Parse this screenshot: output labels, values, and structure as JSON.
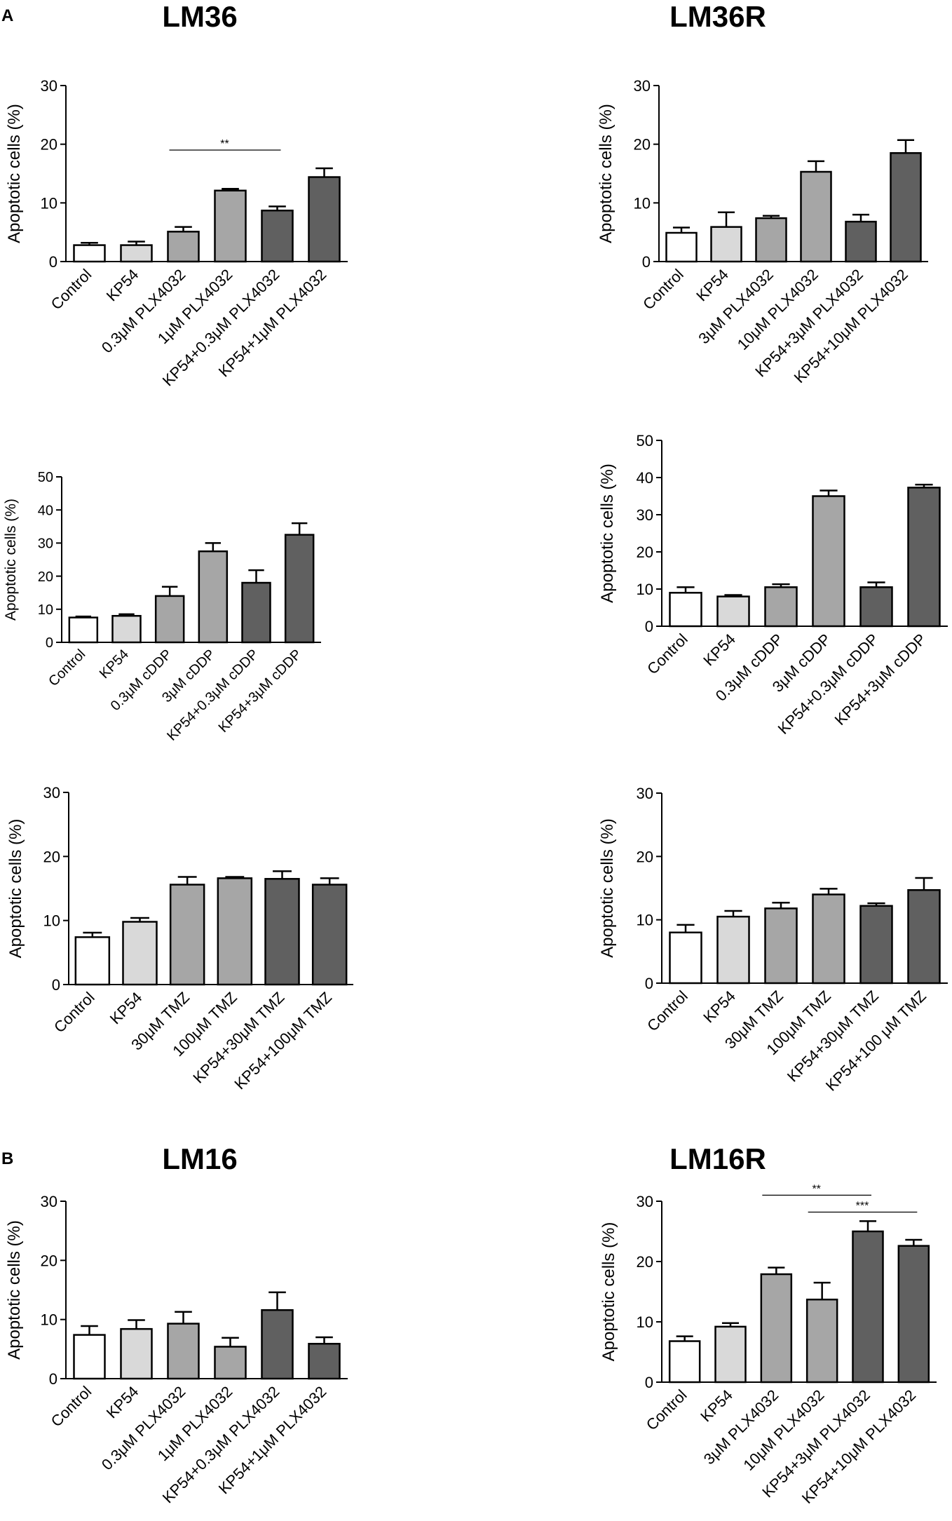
{
  "figure": {
    "panel_labels": [
      "A",
      "B"
    ],
    "bar_colors": [
      "#ffffff",
      "#d9d9d9",
      "#a6a6a6",
      "#a6a6a6",
      "#606060",
      "#606060"
    ]
  },
  "chart_data": [
    {
      "id": "lm36-plx",
      "type": "bar",
      "title": "LM36",
      "ylabel": "Apoptotic cells  (%)",
      "xlabel": "",
      "ylim": [
        0,
        30
      ],
      "yticks": [
        0,
        10,
        20,
        30
      ],
      "categories": [
        "Control",
        "KP54",
        "0.3μM PLX4032",
        "1μM PLX4032",
        "KP54+0.3μM PLX4032",
        "KP54+1μM PLX4032"
      ],
      "values": [
        2.8,
        2.8,
        5.1,
        12.1,
        8.7,
        14.4
      ],
      "errors": [
        0.4,
        0.6,
        0.8,
        0.3,
        0.7,
        1.5
      ],
      "colors": [
        "#ffffff",
        "#d9d9d9",
        "#a6a6a6",
        "#a6a6a6",
        "#606060",
        "#606060"
      ],
      "significance": [
        {
          "from": 2,
          "to": 4,
          "label": "**",
          "y": 19
        }
      ]
    },
    {
      "id": "lm36r-plx",
      "type": "bar",
      "title": "LM36R",
      "ylabel": "Apoptotic cells  (%)",
      "xlabel": "",
      "ylim": [
        0,
        30
      ],
      "yticks": [
        0,
        10,
        20,
        30
      ],
      "categories": [
        "Control",
        "KP54",
        "3μM PLX4032",
        "10μM PLX4032",
        "KP54+3μM PLX4032",
        "KP54+10μM PLX4032"
      ],
      "values": [
        4.9,
        5.9,
        7.4,
        15.3,
        6.8,
        18.5
      ],
      "errors": [
        0.9,
        2.5,
        0.4,
        1.8,
        1.2,
        2.2
      ],
      "colors": [
        "#ffffff",
        "#d9d9d9",
        "#a6a6a6",
        "#a6a6a6",
        "#606060",
        "#606060"
      ],
      "significance": []
    },
    {
      "id": "lm36-cddp",
      "type": "bar",
      "title": "",
      "ylabel": "Apoptotic cells  (%)",
      "xlabel": "",
      "ylim": [
        0,
        50
      ],
      "yticks": [
        0,
        10,
        20,
        30,
        40,
        50
      ],
      "categories": [
        "Control",
        "KP54",
        "0.3μM cDDP",
        "3μM cDDP",
        "KP54+0.3μM cDDP",
        "KP54+3μM cDDP"
      ],
      "values": [
        7.5,
        8.0,
        14.0,
        27.5,
        18.0,
        32.5
      ],
      "errors": [
        0.3,
        0.5,
        2.8,
        2.5,
        3.8,
        3.5
      ],
      "colors": [
        "#ffffff",
        "#d9d9d9",
        "#a6a6a6",
        "#a6a6a6",
        "#606060",
        "#606060"
      ],
      "significance": []
    },
    {
      "id": "lm36r-cddp",
      "type": "bar",
      "title": "",
      "ylabel": "Apoptotic cells  (%)",
      "xlabel": "",
      "ylim": [
        0,
        50
      ],
      "yticks": [
        0,
        10,
        20,
        30,
        40,
        50
      ],
      "categories": [
        "Control",
        "KP54",
        "0.3μM cDDP",
        "3μM cDDP",
        "KP54+0.3μM cDDP",
        "KP54+3μM cDDP"
      ],
      "values": [
        9.0,
        8.0,
        10.5,
        35.0,
        10.5,
        37.3
      ],
      "errors": [
        1.5,
        0.4,
        0.8,
        1.5,
        1.3,
        0.8
      ],
      "colors": [
        "#ffffff",
        "#d9d9d9",
        "#a6a6a6",
        "#a6a6a6",
        "#606060",
        "#606060"
      ],
      "significance": []
    },
    {
      "id": "lm36-tmz",
      "type": "bar",
      "title": "",
      "ylabel": "Apoptotic cells  (%)",
      "xlabel": "",
      "ylim": [
        0,
        30
      ],
      "yticks": [
        0,
        10,
        20,
        30
      ],
      "categories": [
        "Control",
        "KP54",
        "30μM TMZ",
        "100μM TMZ",
        "KP54+30μM TMZ",
        "KP54+100μM TMZ"
      ],
      "values": [
        7.4,
        9.8,
        15.6,
        16.6,
        16.5,
        15.6
      ],
      "errors": [
        0.7,
        0.6,
        1.2,
        0.2,
        1.2,
        1.0
      ],
      "colors": [
        "#ffffff",
        "#d9d9d9",
        "#a6a6a6",
        "#a6a6a6",
        "#606060",
        "#606060"
      ],
      "significance": []
    },
    {
      "id": "lm36r-tmz",
      "type": "bar",
      "title": "",
      "ylabel": "Apoptotic cells  (%)",
      "xlabel": "",
      "ylim": [
        0,
        30
      ],
      "yticks": [
        0,
        10,
        20,
        30
      ],
      "categories": [
        "Control",
        "KP54",
        "30μM TMZ",
        "100μM TMZ",
        "KP54+30μM TMZ",
        "KP54+100 μM TMZ"
      ],
      "values": [
        8.0,
        10.5,
        11.8,
        14.0,
        12.2,
        14.7
      ],
      "errors": [
        1.2,
        0.9,
        0.9,
        0.9,
        0.4,
        1.9
      ],
      "colors": [
        "#ffffff",
        "#d9d9d9",
        "#a6a6a6",
        "#a6a6a6",
        "#606060",
        "#606060"
      ],
      "significance": []
    },
    {
      "id": "lm16-plx",
      "type": "bar",
      "title": "LM16",
      "ylabel": "Apoptotic cells  (%)",
      "xlabel": "",
      "ylim": [
        0,
        30
      ],
      "yticks": [
        0,
        10,
        20,
        30
      ],
      "categories": [
        "Control",
        "KP54",
        "0.3μM PLX4032",
        "1μM PLX4032",
        "KP54+0.3μM PLX4032",
        "KP54+1μM PLX4032"
      ],
      "values": [
        7.4,
        8.4,
        9.3,
        5.4,
        11.6,
        5.9
      ],
      "errors": [
        1.5,
        1.5,
        2.0,
        1.5,
        3.0,
        1.1
      ],
      "colors": [
        "#ffffff",
        "#d9d9d9",
        "#a6a6a6",
        "#a6a6a6",
        "#606060",
        "#606060"
      ],
      "significance": []
    },
    {
      "id": "lm16r-plx",
      "type": "bar",
      "title": "LM16R",
      "ylabel": "Apoptotic cells  (%)",
      "xlabel": "",
      "ylim": [
        0,
        30
      ],
      "yticks": [
        0,
        10,
        20,
        30
      ],
      "categories": [
        "Control",
        "KP54",
        "3μM PLX4032",
        "10μM PLX4032",
        "KP54+3μM PLX4032",
        "KP54+10μM PLX4032"
      ],
      "values": [
        6.8,
        9.2,
        17.9,
        13.7,
        25.0,
        22.6
      ],
      "errors": [
        0.8,
        0.6,
        1.1,
        2.8,
        1.7,
        1.0
      ],
      "colors": [
        "#ffffff",
        "#d9d9d9",
        "#a6a6a6",
        "#a6a6a6",
        "#606060",
        "#606060"
      ],
      "significance": [
        {
          "from": 2,
          "to": 4,
          "label": "**",
          "y": 31
        },
        {
          "from": 3,
          "to": 5,
          "label": "***",
          "y": 28.2
        }
      ]
    }
  ]
}
